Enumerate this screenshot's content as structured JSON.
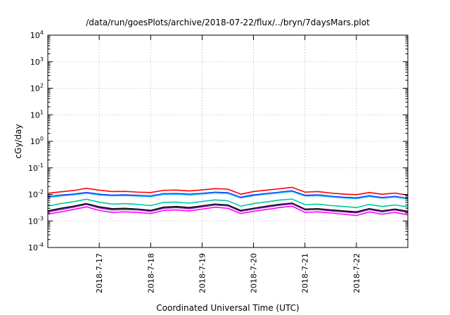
{
  "chart_data": {
    "type": "line",
    "title": "/data/run/goesPlots/archive/2018-07-22/flux/../bryn/7daysMars.plot",
    "xlabel": "Coordinated Universal Time (UTC)",
    "ylabel": "cGy/day",
    "xscale": "time",
    "xlim": [
      "2018-07-16 00:00",
      "2018-07-23 00:00"
    ],
    "yscale": "log",
    "ylim": [
      0.0001,
      10000
    ],
    "grid": true,
    "legend": "none",
    "x_ticks": [
      {
        "date": "2018-07-17",
        "label": "2018-7-17"
      },
      {
        "date": "2018-07-18",
        "label": "2018-7-18"
      },
      {
        "date": "2018-07-19",
        "label": "2018-7-19"
      },
      {
        "date": "2018-07-20",
        "label": "2018-7-20"
      },
      {
        "date": "2018-07-21",
        "label": "2018-7-21"
      },
      {
        "date": "2018-07-22",
        "label": "2018-7-22"
      }
    ],
    "y_ticks": [
      {
        "value": 0.0001,
        "base": "10",
        "exp": "-4"
      },
      {
        "value": 0.001,
        "base": "10",
        "exp": "-3"
      },
      {
        "value": 0.01,
        "base": "10",
        "exp": "-2"
      },
      {
        "value": 0.1,
        "base": "10",
        "exp": "-1"
      },
      {
        "value": 1,
        "base": "10",
        "exp": "0"
      },
      {
        "value": 10,
        "base": "10",
        "exp": "1"
      },
      {
        "value": 100,
        "base": "10",
        "exp": "2"
      },
      {
        "value": 1000,
        "base": "10",
        "exp": "3"
      },
      {
        "value": 10000,
        "base": "10",
        "exp": "4"
      }
    ],
    "x": [
      "2018-07-16 00:00",
      "2018-07-16 06:00",
      "2018-07-16 12:00",
      "2018-07-16 18:00",
      "2018-07-17 00:00",
      "2018-07-17 06:00",
      "2018-07-17 12:00",
      "2018-07-17 18:00",
      "2018-07-18 00:00",
      "2018-07-18 06:00",
      "2018-07-18 12:00",
      "2018-07-18 18:00",
      "2018-07-19 00:00",
      "2018-07-19 06:00",
      "2018-07-19 12:00",
      "2018-07-19 18:00",
      "2018-07-20 00:00",
      "2018-07-20 06:00",
      "2018-07-20 12:00",
      "2018-07-20 18:00",
      "2018-07-21 00:00",
      "2018-07-21 06:00",
      "2018-07-21 12:00",
      "2018-07-21 18:00",
      "2018-07-22 00:00",
      "2018-07-22 06:00",
      "2018-07-22 12:00",
      "2018-07-22 18:00",
      "2018-07-23 00:00"
    ],
    "series": [
      {
        "color": "#ff0000",
        "values": [
          0.011,
          0.0125,
          0.014,
          0.017,
          0.0145,
          0.0128,
          0.013,
          0.0122,
          0.0118,
          0.0142,
          0.0146,
          0.0135,
          0.0148,
          0.0165,
          0.0158,
          0.0102,
          0.0128,
          0.0145,
          0.0163,
          0.0185,
          0.0122,
          0.0128,
          0.0113,
          0.0103,
          0.0098,
          0.0118,
          0.0102,
          0.0112,
          0.0094
        ]
      },
      {
        "color": "#0000ff",
        "values": [
          0.0082,
          0.0093,
          0.0102,
          0.0118,
          0.0101,
          0.0093,
          0.0096,
          0.0091,
          0.0087,
          0.0106,
          0.0108,
          0.0101,
          0.0109,
          0.0121,
          0.0116,
          0.0078,
          0.0095,
          0.0108,
          0.0121,
          0.0136,
          0.0092,
          0.0095,
          0.0085,
          0.0078,
          0.0074,
          0.0088,
          0.0076,
          0.0084,
          0.0071
        ]
      },
      {
        "color": "#00aaff",
        "values": [
          0.0078,
          0.0088,
          0.0097,
          0.0112,
          0.0096,
          0.0089,
          0.0091,
          0.0087,
          0.0083,
          0.0101,
          0.0103,
          0.0096,
          0.0104,
          0.0115,
          0.011,
          0.0074,
          0.009,
          0.0103,
          0.0115,
          0.0129,
          0.0087,
          0.009,
          0.0081,
          0.0074,
          0.007,
          0.0084,
          0.0072,
          0.008,
          0.0068
        ]
      },
      {
        "color": "#00c8a0",
        "values": [
          0.0036,
          0.0045,
          0.0053,
          0.0066,
          0.0051,
          0.0043,
          0.0045,
          0.0042,
          0.0038,
          0.005,
          0.0051,
          0.0047,
          0.0054,
          0.0062,
          0.0058,
          0.0036,
          0.0045,
          0.0052,
          0.0061,
          0.0067,
          0.0041,
          0.0043,
          0.0038,
          0.0035,
          0.0032,
          0.0042,
          0.0035,
          0.004,
          0.0034
        ]
      },
      {
        "color": "#000000",
        "values": [
          0.0024,
          0.003,
          0.0036,
          0.0045,
          0.0034,
          0.0029,
          0.003,
          0.0028,
          0.0025,
          0.0033,
          0.0035,
          0.0032,
          0.0037,
          0.0043,
          0.004,
          0.0025,
          0.003,
          0.0036,
          0.0042,
          0.0047,
          0.0028,
          0.0029,
          0.0026,
          0.0024,
          0.0022,
          0.0029,
          0.0024,
          0.0028,
          0.0023
        ]
      },
      {
        "color": "#7a1fa2",
        "values": [
          0.0022,
          0.0027,
          0.0033,
          0.0042,
          0.0031,
          0.0026,
          0.0027,
          0.0026,
          0.0023,
          0.003,
          0.0032,
          0.0029,
          0.0034,
          0.004,
          0.0037,
          0.0023,
          0.0028,
          0.0033,
          0.0039,
          0.0044,
          0.0026,
          0.0027,
          0.0024,
          0.0022,
          0.002,
          0.0027,
          0.0022,
          0.0026,
          0.0021
        ]
      },
      {
        "color": "#ff00ff",
        "values": [
          0.0018,
          0.0022,
          0.0027,
          0.0034,
          0.0025,
          0.0021,
          0.0022,
          0.0021,
          0.0019,
          0.0025,
          0.0026,
          0.0024,
          0.0028,
          0.0033,
          0.003,
          0.0019,
          0.0023,
          0.0027,
          0.0032,
          0.0036,
          0.0021,
          0.0022,
          0.002,
          0.0018,
          0.0016,
          0.0022,
          0.0018,
          0.0021,
          0.0017
        ]
      }
    ]
  }
}
